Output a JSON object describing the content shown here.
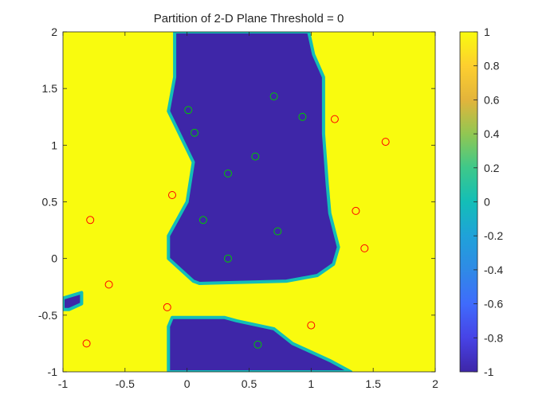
{
  "chart_data": {
    "type": "heatmap",
    "title": "Partition of 2-D Plane Threshold = 0",
    "xlabel": "",
    "ylabel": "",
    "xlim": [
      -1,
      2
    ],
    "ylim": [
      -1,
      2
    ],
    "x_ticks": [
      "-1",
      "-0.5",
      "0",
      "0.5",
      "1",
      "1.5",
      "2"
    ],
    "y_ticks": [
      "-1",
      "-0.5",
      "0",
      "0.5",
      "1",
      "1.5",
      "2"
    ],
    "colorbar": {
      "range": [
        -1,
        1
      ],
      "ticks": [
        "-1",
        "-0.8",
        "-0.6",
        "-0.4",
        "-0.2",
        "0",
        "0.2",
        "0.4",
        "0.6",
        "0.8",
        "1"
      ],
      "colormap": "parula",
      "low_color": "#3e26a8",
      "mid_color": "#13beb7",
      "high_color": "#f9fb0e"
    },
    "regions": {
      "background_value": 1,
      "low_value": -1,
      "low_regions": [
        [
          [
            -0.1,
            2.0
          ],
          [
            0.98,
            2.0
          ],
          [
            1.02,
            1.8
          ],
          [
            1.1,
            1.6
          ],
          [
            1.1,
            1.1
          ],
          [
            1.13,
            0.65
          ],
          [
            1.15,
            0.4
          ],
          [
            1.22,
            0.1
          ],
          [
            1.18,
            -0.05
          ],
          [
            1.05,
            -0.15
          ],
          [
            0.8,
            -0.2
          ],
          [
            0.1,
            -0.22
          ],
          [
            0.05,
            -0.2
          ],
          [
            -0.15,
            0.0
          ],
          [
            -0.15,
            0.2
          ],
          [
            -0.1,
            0.3
          ],
          [
            0.0,
            0.5
          ],
          [
            0.05,
            0.85
          ],
          [
            -0.15,
            1.3
          ],
          [
            -0.1,
            1.6
          ]
        ],
        [
          [
            -0.15,
            -1.0
          ],
          [
            -0.15,
            -0.6
          ],
          [
            -0.12,
            -0.52
          ],
          [
            0.3,
            -0.52
          ],
          [
            0.4,
            -0.55
          ],
          [
            0.7,
            -0.62
          ],
          [
            0.85,
            -0.75
          ],
          [
            1.15,
            -0.9
          ],
          [
            1.32,
            -1.0
          ]
        ],
        [
          [
            -1.0,
            -0.35
          ],
          [
            -0.85,
            -0.3
          ],
          [
            -0.85,
            -0.4
          ],
          [
            -0.95,
            -0.45
          ],
          [
            -1.0,
            -0.45
          ]
        ]
      ]
    },
    "series": [
      {
        "marker": "circle",
        "color": "#00c800",
        "x": [
          0.01,
          0.06,
          0.7,
          0.93,
          0.55,
          0.33,
          0.13,
          0.73,
          0.33,
          0.57
        ],
        "y": [
          1.31,
          1.11,
          1.43,
          1.25,
          0.9,
          0.75,
          0.34,
          0.24,
          0.0,
          -0.76
        ]
      },
      {
        "marker": "circle",
        "color": "#ff0000",
        "x": [
          1.19,
          1.6,
          -0.12,
          -0.78,
          1.36,
          1.43,
          -0.63,
          -0.16,
          1.0,
          -0.81
        ],
        "y": [
          1.23,
          1.03,
          0.56,
          0.34,
          0.42,
          0.09,
          -0.23,
          -0.43,
          -0.59,
          -0.75
        ]
      }
    ]
  }
}
